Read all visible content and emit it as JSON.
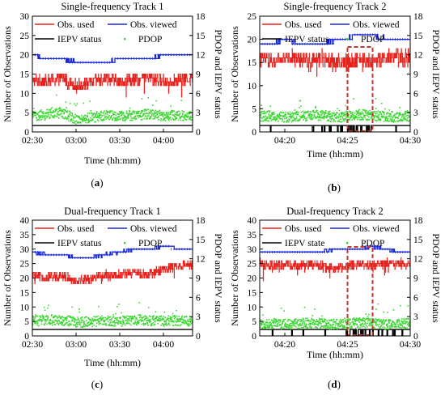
{
  "figure": {
    "colors": {
      "obs_used": "#e8211c",
      "obs_viewed": "#1a2ad6",
      "iepv": "#000000",
      "pdop": "#39d62f",
      "highlight": "#c0392b"
    }
  },
  "chart_data": [
    {
      "id": "a",
      "type": "line",
      "title": "Single-frequency Track 1",
      "panel_label": "(a)",
      "xlabel": "Time (hh:mm)",
      "ylabel_left": "Number of Observations",
      "ylabel_right": "PDOP and IEPV status",
      "xticks": [
        "02:30",
        "03:00",
        "03:30",
        "04:00"
      ],
      "xlim_minutes": [
        150,
        260
      ],
      "ylim_left": [
        0,
        30
      ],
      "yticks_left": [
        0,
        5,
        10,
        15,
        20,
        25,
        30
      ],
      "ylim_right": [
        0,
        18
      ],
      "yticks_right": [
        0,
        3,
        6,
        9,
        12,
        15,
        18
      ],
      "legend": [
        "Obs. used",
        "Obs. viewed",
        "IEPV status",
        "PDOP"
      ],
      "series": [
        {
          "name": "Obs. used",
          "axis": "left",
          "style": "line",
          "x": [
            150,
            160,
            170,
            180,
            190,
            200,
            210,
            220,
            230,
            240,
            250,
            260
          ],
          "values": [
            13.5,
            13,
            14,
            12,
            13,
            14,
            13,
            13.5,
            14,
            13,
            13.5,
            14
          ]
        },
        {
          "name": "Obs. viewed",
          "axis": "left",
          "style": "line",
          "x": [
            150,
            160,
            170,
            180,
            190,
            200,
            210,
            220,
            230,
            240,
            250,
            260
          ],
          "values": [
            20,
            19,
            19,
            18,
            18,
            18,
            19,
            19,
            19,
            20,
            20,
            20
          ]
        },
        {
          "name": "IEPV status",
          "axis": "right",
          "style": "line",
          "x": [
            150,
            260
          ],
          "values": [
            1,
            1
          ]
        },
        {
          "name": "PDOP",
          "axis": "right",
          "style": "scatter",
          "x": [
            150,
            160,
            170,
            180,
            190,
            200,
            210,
            220,
            230,
            240,
            250,
            260
          ],
          "values": [
            2.5,
            2.7,
            3.0,
            2.0,
            2.2,
            2.6,
            2.4,
            2.6,
            2.8,
            2.5,
            2.6,
            2.4
          ]
        }
      ]
    },
    {
      "id": "b",
      "type": "line",
      "title": "Single-frequency Track 2",
      "panel_label": "(b)",
      "xlabel": "Time (hh:mm)",
      "ylabel_left": "Number of Observations",
      "ylabel_right": "PDOP and IEPV status",
      "xticks": [
        "04:20",
        "04:25",
        "04:30"
      ],
      "xlim_minutes": [
        258,
        270
      ],
      "ylim_left": [
        0,
        25
      ],
      "yticks_left": [
        0,
        5,
        10,
        15,
        20,
        25
      ],
      "ylim_right": [
        0,
        18
      ],
      "yticks_right": [
        0,
        3,
        6,
        9,
        12,
        15,
        18
      ],
      "legend": [
        "Obs. used",
        "Obs. viewed",
        "IEPV status",
        "PDOP"
      ],
      "highlight_x": [
        265,
        267
      ],
      "series": [
        {
          "name": "Obs. used",
          "axis": "left",
          "style": "line",
          "x": [
            258,
            259,
            260,
            261,
            262,
            263,
            264,
            265,
            266,
            267,
            268,
            269,
            270
          ],
          "values": [
            16,
            15,
            16,
            16,
            15.5,
            16,
            15,
            15,
            16,
            15,
            16,
            16,
            16
          ]
        },
        {
          "name": "Obs. viewed",
          "axis": "left",
          "style": "line",
          "x": [
            258,
            259,
            260,
            261,
            262,
            263,
            264,
            265,
            266,
            267,
            268,
            269,
            270
          ],
          "values": [
            19,
            19,
            20,
            19,
            19,
            19,
            20,
            20,
            21,
            21,
            20,
            20,
            20
          ]
        },
        {
          "name": "IEPV status",
          "axis": "right",
          "style": "line",
          "x": [
            258,
            270
          ],
          "values": [
            1,
            1
          ]
        },
        {
          "name": "PDOP",
          "axis": "right",
          "style": "scatter",
          "x": [
            258,
            259,
            260,
            261,
            262,
            263,
            264,
            265,
            266,
            267,
            268,
            269,
            270
          ],
          "values": [
            2.4,
            2.5,
            2.3,
            2.4,
            2.5,
            2.6,
            2.3,
            2.4,
            2.7,
            2.5,
            2.4,
            2.3,
            2.4
          ]
        }
      ]
    },
    {
      "id": "c",
      "type": "line",
      "title": "Dual-frequency Track 1",
      "panel_label": "(c)",
      "xlabel": "Time (hh:mm)",
      "ylabel_left": "Number of Observations",
      "ylabel_right": "PDOP and IEPV status",
      "xticks": [
        "02:30",
        "03:00",
        "03:30",
        "04:00"
      ],
      "xlim_minutes": [
        150,
        260
      ],
      "ylim_left": [
        0,
        40
      ],
      "yticks_left": [
        0,
        5,
        10,
        15,
        20,
        25,
        30,
        35,
        40
      ],
      "ylim_right": [
        0,
        18
      ],
      "yticks_right": [
        0,
        3,
        6,
        9,
        12,
        15,
        18
      ],
      "legend": [
        "Obs. used",
        "Obs. viewed",
        "IEPV status",
        "PDOP"
      ],
      "series": [
        {
          "name": "Obs. used",
          "axis": "left",
          "style": "line",
          "x": [
            150,
            160,
            170,
            180,
            190,
            200,
            210,
            220,
            230,
            240,
            250,
            260
          ],
          "values": [
            21,
            20,
            21,
            19,
            20,
            21,
            21,
            22,
            21,
            23,
            24,
            25
          ]
        },
        {
          "name": "Obs. viewed",
          "axis": "left",
          "style": "line",
          "x": [
            150,
            160,
            170,
            180,
            190,
            200,
            210,
            220,
            230,
            240,
            250,
            260
          ],
          "values": [
            29,
            28,
            28,
            27,
            27,
            28,
            29,
            30,
            30,
            31,
            30,
            30
          ]
        },
        {
          "name": "IEPV status",
          "axis": "right",
          "style": "line",
          "x": [
            150,
            260
          ],
          "values": [
            1,
            1
          ]
        },
        {
          "name": "PDOP",
          "axis": "right",
          "style": "scatter",
          "x": [
            150,
            160,
            170,
            180,
            190,
            200,
            210,
            220,
            230,
            240,
            250,
            260
          ],
          "values": [
            2.3,
            2.4,
            2.5,
            2.1,
            2.2,
            2.4,
            2.3,
            2.5,
            2.4,
            2.3,
            2.4,
            2.3
          ]
        }
      ]
    },
    {
      "id": "d",
      "type": "line",
      "title": "Dual-frequency Track 2",
      "panel_label": "(d)",
      "xlabel": "Time (hh:mm)",
      "ylabel_left": "Number of Observations",
      "ylabel_right": "PDOP and IEPV status",
      "xticks": [
        "04:20",
        "04:25",
        "04:30"
      ],
      "xlim_minutes": [
        258,
        270
      ],
      "ylim_left": [
        0,
        40
      ],
      "yticks_left": [
        0,
        5,
        10,
        15,
        20,
        25,
        30,
        35,
        40
      ],
      "ylim_right": [
        0,
        18
      ],
      "yticks_right": [
        0,
        3,
        6,
        9,
        12,
        15,
        18
      ],
      "legend": [
        "Obs. used",
        "Obs. viewed",
        "IEPV state",
        "PDOP"
      ],
      "highlight_x": [
        265,
        267
      ],
      "series": [
        {
          "name": "Obs. used",
          "axis": "left",
          "style": "line",
          "x": [
            258,
            259,
            260,
            261,
            262,
            263,
            264,
            265,
            266,
            267,
            268,
            269,
            270
          ],
          "values": [
            25,
            24,
            25,
            24,
            25,
            24,
            23,
            24,
            25,
            24,
            25,
            25,
            25
          ]
        },
        {
          "name": "Obs. viewed",
          "axis": "left",
          "style": "line",
          "x": [
            258,
            259,
            260,
            261,
            262,
            263,
            264,
            265,
            266,
            267,
            268,
            269,
            270
          ],
          "values": [
            29,
            29,
            29,
            29,
            29,
            29,
            30,
            30,
            30,
            31,
            30,
            29,
            29
          ]
        },
        {
          "name": "IEPV state",
          "axis": "right",
          "style": "line",
          "x": [
            258,
            270
          ],
          "values": [
            1,
            1
          ]
        },
        {
          "name": "PDOP",
          "axis": "right",
          "style": "scatter",
          "x": [
            258,
            259,
            260,
            261,
            262,
            263,
            264,
            265,
            266,
            267,
            268,
            269,
            270
          ],
          "values": [
            1.8,
            1.9,
            1.8,
            1.9,
            2.0,
            1.9,
            1.8,
            1.9,
            2.0,
            1.9,
            1.8,
            1.9,
            1.9
          ]
        }
      ]
    }
  ]
}
